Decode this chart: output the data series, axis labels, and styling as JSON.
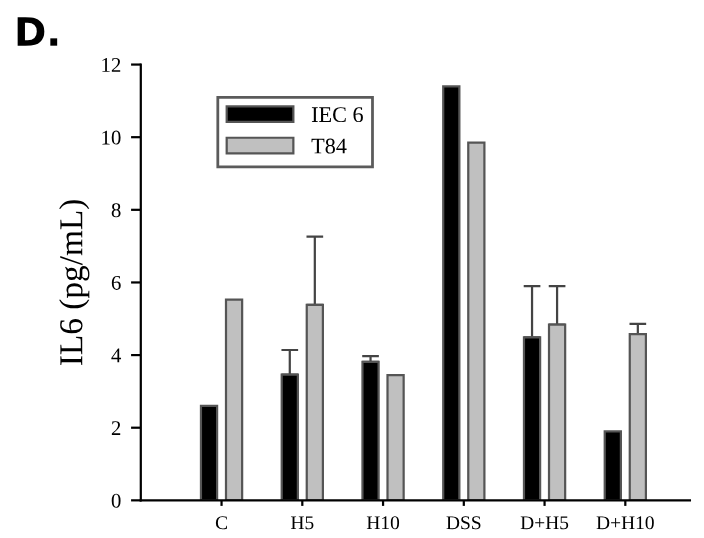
{
  "chart_data": {
    "type": "bar",
    "title": "D.",
    "ylabel": "IL6 (pg/mL)",
    "categories": [
      "C",
      "H5",
      "H10",
      "DSS",
      "D+H5",
      "D+H10"
    ],
    "series": [
      {
        "name": "IEC 6",
        "color": "#000000",
        "values": [
          2.6,
          3.46,
          3.81,
          11.4,
          4.49,
          1.9
        ],
        "errors": [
          null,
          [
            3.46,
            4.14
          ],
          [
            3.81,
            3.97
          ],
          null,
          [
            4.49,
            5.9
          ],
          null
        ]
      },
      {
        "name": "T84",
        "color": "#c0c0c0",
        "values": [
          5.53,
          5.38,
          3.45,
          9.85,
          4.84,
          4.58
        ],
        "errors": [
          null,
          [
            5.38,
            7.26
          ],
          null,
          null,
          [
            4.84,
            5.9
          ],
          [
            4.58,
            4.86
          ]
        ]
      }
    ],
    "ylim": [
      0,
      12
    ],
    "yticks": [
      0,
      2,
      4,
      6,
      8,
      10,
      12
    ],
    "grid": false,
    "legend": "top left"
  }
}
